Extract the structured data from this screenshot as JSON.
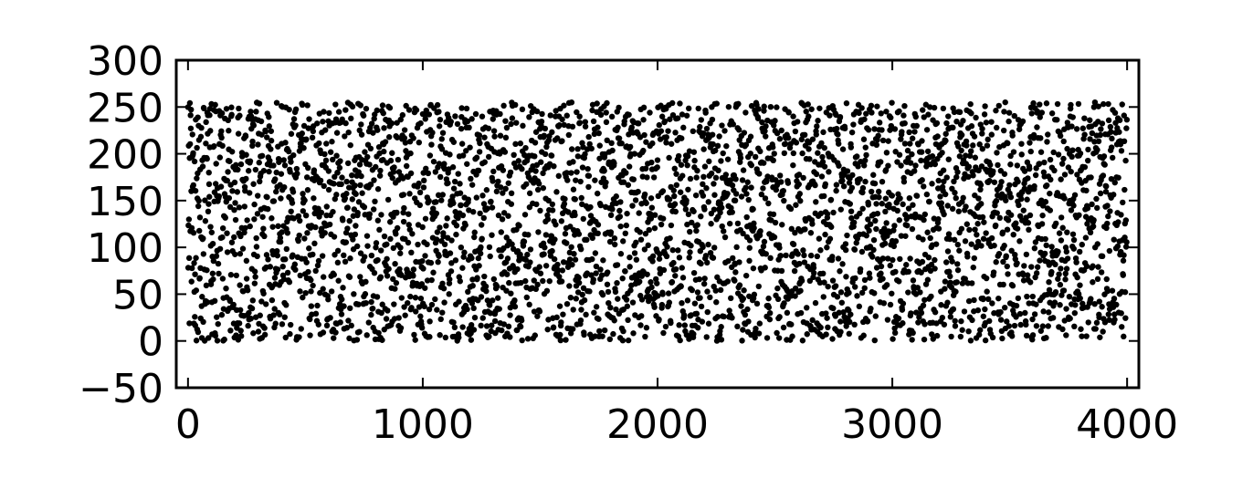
{
  "chart_data": {
    "type": "scatter",
    "title": "",
    "xlabel": "",
    "ylabel": "",
    "xlim": [
      -50,
      4050
    ],
    "ylim": [
      -50,
      300
    ],
    "x_ticks": [
      0,
      1000,
      2000,
      3000,
      4000
    ],
    "y_ticks": [
      -50,
      0,
      50,
      100,
      150,
      200,
      250,
      300
    ],
    "x_tick_labels": [
      "0",
      "1000",
      "2000",
      "3000",
      "4000"
    ],
    "y_tick_labels": [
      "−50",
      "0",
      "50",
      "100",
      "150",
      "200",
      "250",
      "300"
    ],
    "grid": false,
    "colors": {
      "points": "#000000",
      "axes": "#000000",
      "background": "#ffffff"
    },
    "series": [
      {
        "n_points": 4000,
        "x_range": [
          0,
          3999
        ],
        "y_range": [
          0,
          255
        ],
        "x_step": 1,
        "distribution": "uniform",
        "seed": 12345
      }
    ]
  }
}
